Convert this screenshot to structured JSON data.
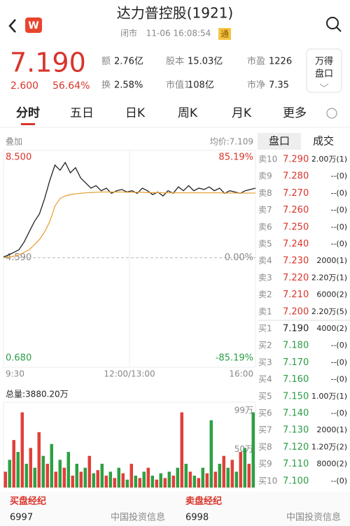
{
  "header": {
    "title": "达力普控股(1921)",
    "status": "闭市",
    "time": "11-06 16:08:54",
    "badge": "通"
  },
  "quote": {
    "price": "7.190",
    "change": "2.600",
    "change_pct": "56.64%",
    "stats": [
      {
        "label": "额",
        "value": "2.76亿"
      },
      {
        "label": "股本",
        "value": "15.03亿"
      },
      {
        "label": "市盈",
        "value": "1226"
      },
      {
        "label": "换",
        "value": "2.58%"
      },
      {
        "label": "市值1",
        "value": "108亿"
      },
      {
        "label": "市净",
        "value": "7.35"
      }
    ],
    "button": [
      "万得",
      "盘口"
    ]
  },
  "tabs": [
    "分时",
    "五日",
    "日K",
    "周K",
    "月K",
    "更多"
  ],
  "overlay": "叠加",
  "avg_label": "均价:7.109",
  "x_labels": [
    "9:30",
    "12:00/13:00",
    "16:00"
  ],
  "total_volume": "总量:3880.20万",
  "chart_data": [
    {
      "type": "line",
      "ylim": [
        0.68,
        8.5
      ],
      "yticks": [
        {
          "value": 8.5,
          "label": "8.500"
        },
        {
          "value": 4.59,
          "label": "4.590"
        },
        {
          "value": 0.68,
          "label": "0.680"
        }
      ],
      "y2lim": [
        -85.19,
        85.19
      ],
      "y2ticks": [
        {
          "value": 85.19,
          "label": "85.19%"
        },
        {
          "value": 0,
          "label": "0.00%"
        },
        {
          "value": -85.19,
          "label": "-85.19%"
        }
      ],
      "series": [
        {
          "color": "#222222",
          "values": [
            4.62,
            4.7,
            4.8,
            4.9,
            5.2,
            5.6,
            6.0,
            6.3,
            6.9,
            7.6,
            8.2,
            8.0,
            8.3,
            7.9,
            8.1,
            7.7,
            7.5,
            7.3,
            7.4,
            7.2,
            7.3,
            7.1,
            7.2,
            7.25,
            7.15,
            7.2,
            7.1,
            7.3,
            7.2,
            7.05,
            7.15,
            7.0,
            7.2,
            7.1,
            7.35,
            7.2,
            7.4,
            7.2,
            7.3,
            7.25,
            7.35,
            7.2,
            7.3,
            7.1,
            7.2,
            7.15,
            7.1,
            7.2,
            7.25,
            7.3
          ]
        },
        {
          "color": "#e8a33a",
          "values": [
            4.6,
            4.62,
            4.65,
            4.7,
            4.8,
            4.9,
            5.1,
            5.3,
            5.6,
            6.0,
            6.6,
            6.9,
            7.0,
            7.05,
            7.08,
            7.1,
            7.12,
            7.13,
            7.14,
            7.15,
            7.15,
            7.15,
            7.15,
            7.15,
            7.14,
            7.14,
            7.14,
            7.14,
            7.13,
            7.13,
            7.13,
            7.12,
            7.12,
            7.12,
            7.12,
            7.12,
            7.12,
            7.12,
            7.12,
            7.12,
            7.12,
            7.12,
            7.12,
            7.11,
            7.11,
            7.11,
            7.11,
            7.11,
            7.11,
            7.11
          ]
        }
      ]
    },
    {
      "type": "bar",
      "ylim": [
        0,
        99
      ],
      "yticks": [
        {
          "value": 99,
          "label": "99万"
        },
        {
          "value": 50,
          "label": "50万"
        }
      ],
      "values": [
        20,
        35,
        60,
        45,
        95,
        30,
        50,
        25,
        70,
        40,
        30,
        55,
        20,
        35,
        25,
        45,
        15,
        30,
        20,
        25,
        40,
        18,
        22,
        30,
        15,
        20,
        12,
        25,
        18,
        10,
        30,
        15,
        12,
        20,
        25,
        15,
        10,
        18,
        12,
        20,
        15,
        25,
        95,
        30,
        20,
        15,
        12,
        25,
        18,
        85,
        20,
        30,
        40,
        25,
        35,
        20,
        45,
        50,
        30,
        95
      ],
      "colors": [
        "#e0403a",
        "#2ea043"
      ]
    }
  ],
  "order_book": {
    "tabs": [
      "盘口",
      "成交"
    ],
    "rows": [
      [
        "卖10",
        "7.290",
        "2.00万(1)"
      ],
      [
        "卖9",
        "7.280",
        "--(0)"
      ],
      [
        "卖8",
        "7.270",
        "--(0)"
      ],
      [
        "卖7",
        "7.260",
        "--(0)"
      ],
      [
        "卖6",
        "7.250",
        "--(0)"
      ],
      [
        "卖5",
        "7.240",
        "--(0)"
      ],
      [
        "卖4",
        "7.230",
        "2000(1)"
      ],
      [
        "卖3",
        "7.220",
        "2.20万(1)"
      ],
      [
        "卖2",
        "7.210",
        "6000(2)"
      ],
      [
        "卖1",
        "7.200",
        "2.20万(5)"
      ],
      [
        "买1",
        "7.190",
        "4000(2)"
      ],
      [
        "买2",
        "7.180",
        "--(0)"
      ],
      [
        "买3",
        "7.170",
        "--(0)"
      ],
      [
        "买4",
        "7.160",
        "--(0)"
      ],
      [
        "买5",
        "7.150",
        "1.00万(1)"
      ],
      [
        "买6",
        "7.140",
        "--(0)"
      ],
      [
        "买7",
        "7.130",
        "2000(1)"
      ],
      [
        "买8",
        "7.120",
        "1.20万(2)"
      ],
      [
        "买9",
        "7.110",
        "8000(2)"
      ],
      [
        "买10",
        "7.100",
        "--(0)"
      ]
    ]
  },
  "footer": [
    {
      "title": "买盘经纪",
      "code": "6997",
      "source": "中国投资信息"
    },
    {
      "title": "卖盘经纪",
      "code": "6998",
      "source": "中国投资信息"
    }
  ]
}
